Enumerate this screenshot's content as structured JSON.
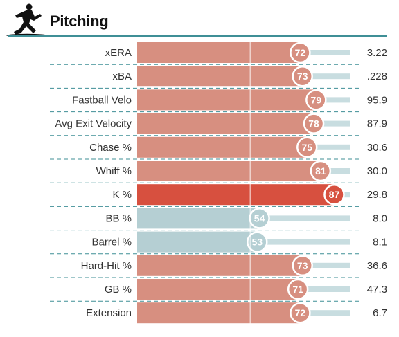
{
  "header": {
    "title": "Pitching",
    "icon": "pitcher-silhouette-icon"
  },
  "colors": {
    "rule": "#3f8f96",
    "track": "#c8dde0",
    "high": "#d7503f",
    "mid": "#d78f80",
    "low": "#b5cfd3"
  },
  "chart_data": {
    "type": "bar",
    "xlim": [
      0,
      100
    ],
    "categories": [
      "xERA",
      "xBA",
      "Fastball Velo",
      "Avg Exit Velocity",
      "Chase %",
      "Whiff %",
      "K %",
      "BB %",
      "Barrel %",
      "Hard-Hit %",
      "GB %",
      "Extension"
    ],
    "percentiles": [
      72,
      73,
      79,
      78,
      75,
      81,
      87,
      54,
      53,
      73,
      71,
      72
    ],
    "values": [
      "3.22",
      ".228",
      "95.9",
      "87.9",
      "30.6",
      "30.0",
      "29.8",
      "8.0",
      "8.1",
      "36.6",
      "47.3",
      "6.7"
    ]
  }
}
